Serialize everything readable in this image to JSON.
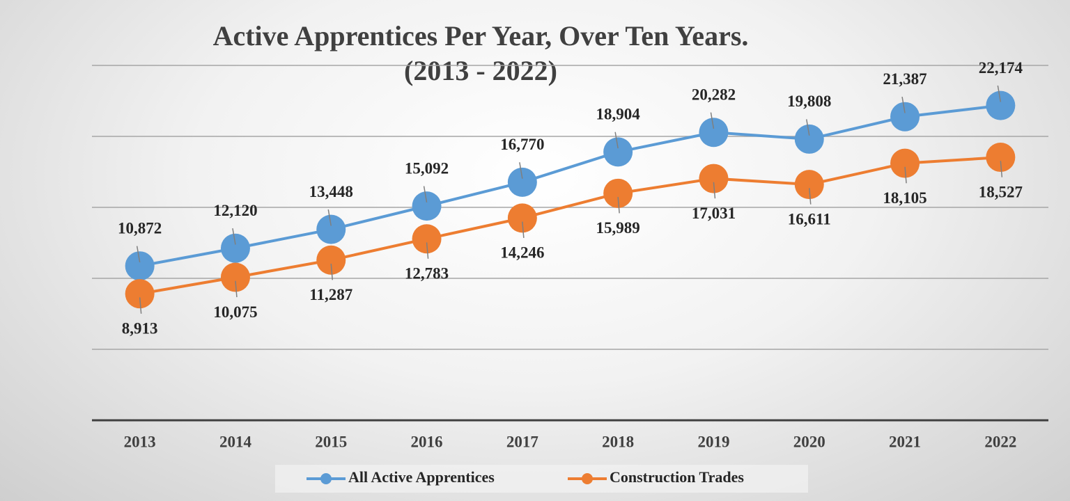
{
  "chart_data": {
    "type": "line",
    "title": "Active Apprentices Per Year, Over Ten Years.",
    "subtitle": "(2013 - 2022)",
    "categories": [
      "2013",
      "2014",
      "2015",
      "2016",
      "2017",
      "2018",
      "2019",
      "2020",
      "2021",
      "2022"
    ],
    "series": [
      {
        "name": "All Active Apprentices",
        "color": "#5b9bd5",
        "values": [
          10872,
          12120,
          13448,
          15092,
          16770,
          18904,
          20282,
          19808,
          21387,
          22174
        ],
        "value_labels": [
          "10,872",
          "12,120",
          "13,448",
          "15,092",
          "16,770",
          "18,904",
          "20,282",
          "19,808",
          "21,387",
          "22,174"
        ]
      },
      {
        "name": "Construction Trades",
        "color": "#ed7d31",
        "values": [
          8913,
          10075,
          11287,
          12783,
          14246,
          15989,
          17031,
          16611,
          18105,
          18527
        ],
        "value_labels": [
          "8,913",
          "10,075",
          "11,287",
          "12,783",
          "14,246",
          "15,989",
          "17,031",
          "16,611",
          "18,105",
          "18,527"
        ]
      }
    ],
    "ylim": [
      0,
      25000
    ],
    "yticks": [
      0,
      5000,
      10000,
      15000,
      20000,
      25000
    ],
    "grid": true,
    "legend": "bottom"
  }
}
